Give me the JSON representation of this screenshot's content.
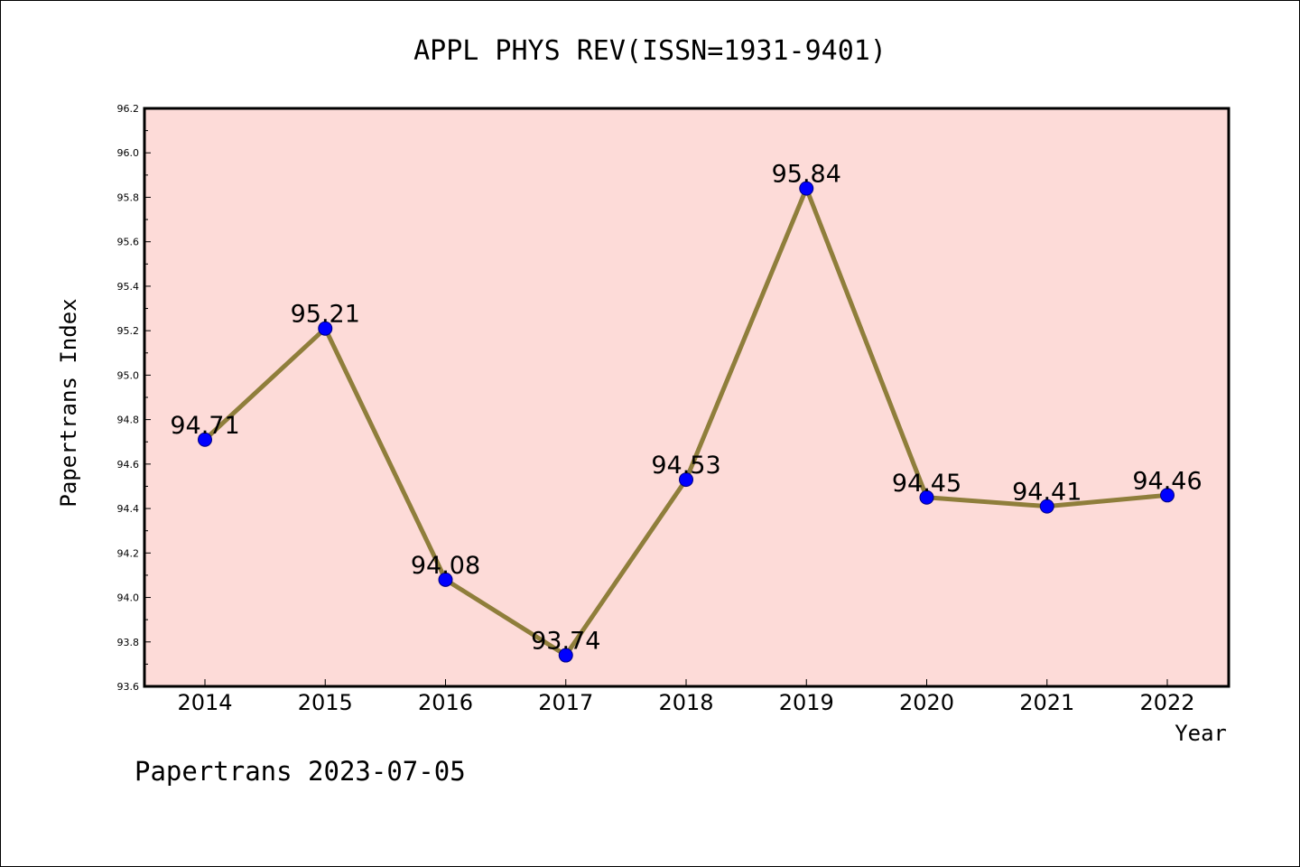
{
  "chart_data": {
    "type": "line",
    "title": "APPL PHYS REV(ISSN=1931-9401)",
    "xlabel": "Year",
    "ylabel": "Papertrans Index",
    "categories": [
      "2014",
      "2015",
      "2016",
      "2017",
      "2018",
      "2019",
      "2020",
      "2021",
      "2022"
    ],
    "series": [
      {
        "values": [
          94.71,
          95.21,
          94.08,
          93.74,
          94.53,
          95.84,
          94.45,
          94.41,
          94.46
        ],
        "labels": [
          "94.71",
          "95.21",
          "94.08",
          "93.74",
          "94.53",
          "95.84",
          "94.45",
          "94.41",
          "94.46"
        ]
      }
    ],
    "ylim": [
      93.6,
      96.2
    ],
    "yticks": [
      "93.6",
      "93.8",
      "94.0",
      "94.2",
      "94.4",
      "94.6",
      "94.8",
      "95.0",
      "95.2",
      "95.4",
      "95.6",
      "95.8",
      "96.0",
      "96.2"
    ],
    "grid": false,
    "legend": "none"
  },
  "footer": {
    "text": "Papertrans 2023-07-05"
  },
  "colors": {
    "plot_background": "#fddbd8",
    "line": "#8f7e3b",
    "marker": "#0000ff",
    "axes": "#000000"
  }
}
